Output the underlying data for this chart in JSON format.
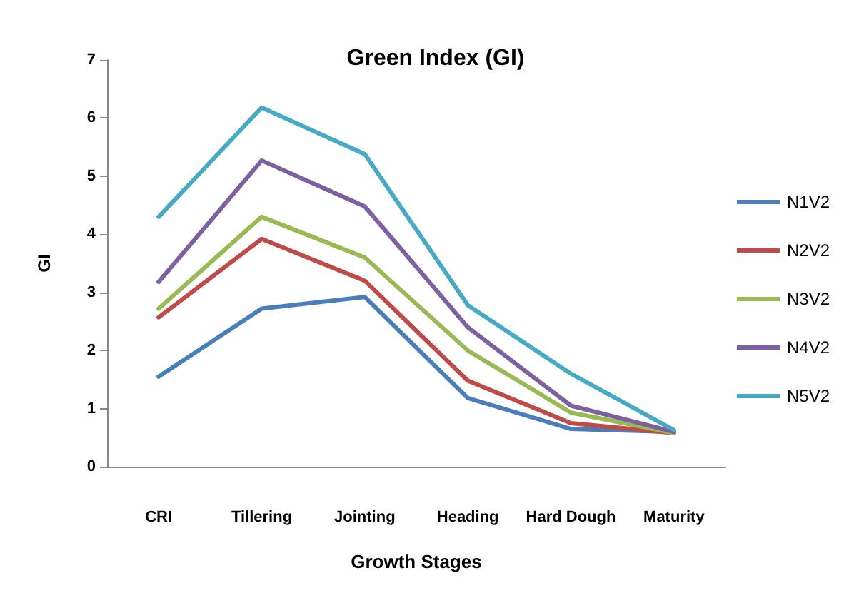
{
  "chart_data": {
    "type": "line",
    "title": "Green Index (GI)",
    "xlabel": "Growth Stages",
    "ylabel": "GI",
    "categories": [
      "CRI",
      "Tillering",
      "Jointing",
      "Heading",
      "Hard Dough",
      "Maturity"
    ],
    "series": [
      {
        "name": "N1V2",
        "color": "#4a7ebb",
        "values": [
          1.55,
          2.72,
          2.92,
          1.18,
          0.65,
          0.6
        ]
      },
      {
        "name": "N2V2",
        "color": "#be4b48",
        "values": [
          2.57,
          3.92,
          3.2,
          1.48,
          0.75,
          0.58
        ]
      },
      {
        "name": "N3V2",
        "color": "#98b954",
        "values": [
          2.72,
          4.3,
          3.6,
          2.0,
          0.93,
          0.58
        ]
      },
      {
        "name": "N4V2",
        "color": "#7d60a0",
        "values": [
          3.18,
          5.27,
          4.48,
          2.4,
          1.05,
          0.6
        ]
      },
      {
        "name": "N5V2",
        "color": "#46aac5",
        "values": [
          4.3,
          6.18,
          5.38,
          2.78,
          1.6,
          0.63
        ]
      }
    ],
    "ylim": [
      0,
      7
    ],
    "yticks": [
      0,
      1,
      2,
      3,
      4,
      5,
      6,
      7
    ],
    "grid": false,
    "legend": "right",
    "marker": "none",
    "line_style": "solid"
  }
}
